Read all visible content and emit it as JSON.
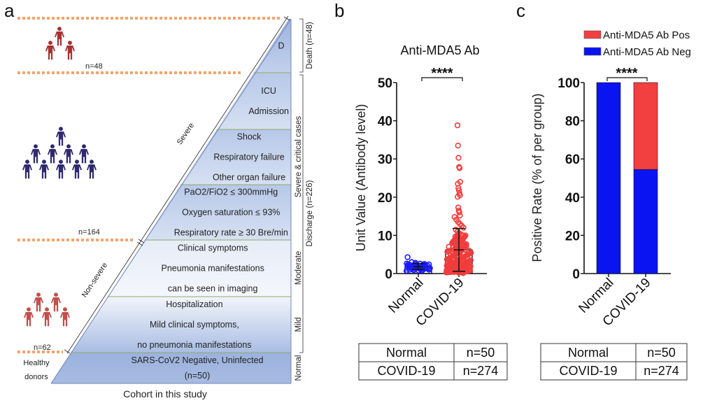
{
  "panel_a": {
    "letter": "a",
    "caption": "Cohort in this study",
    "cohort_counts": {
      "death": "n=48",
      "severe": "n=164",
      "non_severe": "n=62"
    },
    "healthy_label_1": "Healthy",
    "healthy_label_2": "donors",
    "slope_labels": {
      "severe": "Severe",
      "non_severe": "Non-severe"
    },
    "tiers": [
      {
        "id": "death",
        "lines": [
          "D"
        ]
      },
      {
        "id": "icu",
        "lines": [
          "ICU",
          "Admission"
        ]
      },
      {
        "id": "critical",
        "lines": [
          "Shock",
          "Respiratory failure",
          "Other organ  failure"
        ]
      },
      {
        "id": "severe",
        "lines": [
          "PaO2/FiO2 ≤ 300mmHg",
          "Oxygen saturation ≤ 93%",
          "Respiratory rate ≥ 30 Bre/min"
        ]
      },
      {
        "id": "moderate",
        "lines": [
          "Clinical symptoms",
          "Pneumonia manifestations",
          "can be seen in imaging"
        ]
      },
      {
        "id": "mild",
        "lines": [
          "Hospitalization",
          "Mild clinical symptoms,",
          "no pneumonia manifestations"
        ]
      },
      {
        "id": "normal",
        "lines": [
          "SARS-CoV2 Negative, Uninfected",
          "(n=50)"
        ]
      }
    ],
    "side_labels": {
      "death": "Death (n=48)",
      "severe_critical": "Severe & critical cases",
      "discharge": "Discharge (n=226)",
      "moderate": "Moderate",
      "mild": "Mild",
      "normal": "Normal"
    },
    "icon_groups": [
      {
        "name": "death-group",
        "count": 3,
        "color": "#a83232"
      },
      {
        "name": "severe-group",
        "count": 10,
        "color": "#2e2a6e"
      },
      {
        "name": "non-severe-group",
        "count": 5,
        "color": "#c0504d"
      }
    ],
    "colors": {
      "tier_fill_dark": "#9fb4dc",
      "tier_fill_light": "#edf1f9",
      "dots": "#f4a46b",
      "divider": "#8fa86a"
    }
  },
  "chart_data": [
    {
      "type": "scatter",
      "panel": "b",
      "title": "Anti-MDA5 Ab",
      "xlabel": "",
      "ylabel": "Unit Value (Antibody level)",
      "ylim": [
        0,
        50
      ],
      "yticks": [
        0,
        10,
        20,
        30,
        40,
        50
      ],
      "categories": [
        "Normal",
        "COVID-19"
      ],
      "significance": "****",
      "series": [
        {
          "name": "Normal",
          "color": "#1a1aff",
          "mean": 1.8,
          "sd_low": 1.1,
          "sd_high": 2.6,
          "values": [
            4.3,
            3.0,
            2.8,
            2.6,
            2.5,
            2.4,
            2.3,
            2.2,
            2.1,
            2.0,
            2.0,
            1.9,
            1.9,
            1.8,
            1.8,
            1.7,
            1.7,
            1.6,
            1.6,
            1.5,
            1.5,
            1.4,
            1.4,
            1.3,
            1.2,
            1.2,
            1.1,
            1.0,
            0.9,
            0.8
          ]
        },
        {
          "name": "COVID-19",
          "color": "#f03c3c",
          "mean": 6.2,
          "sd_low": 0.6,
          "sd_high": 11.8,
          "values": [
            38.8,
            33.5,
            30.3,
            27.9,
            27.6,
            24.0,
            23.5,
            22.4,
            21.8,
            21.0,
            20.5,
            20.1,
            17.3,
            16.5,
            16.0,
            15.2,
            14.8,
            14.1,
            13.5,
            13.0,
            12.5,
            12.0,
            11.5,
            11.0,
            10.5,
            10.2,
            10.0,
            9.7,
            9.4,
            9.1,
            8.8,
            8.5,
            8.2,
            8.0,
            7.8,
            7.5,
            7.2,
            7.0,
            6.8,
            6.6,
            6.4,
            6.2,
            6.0,
            5.8,
            5.6,
            5.4,
            5.2,
            5.0,
            4.8,
            4.6,
            4.4,
            4.2,
            4.0,
            3.8,
            3.6,
            3.4,
            3.2,
            3.0,
            2.8,
            2.6,
            2.4,
            2.2,
            2.0,
            1.8,
            1.6,
            1.4,
            1.2,
            1.0,
            0.8,
            0.6,
            0.4,
            0.2,
            0.1
          ]
        }
      ],
      "table": [
        [
          "Normal",
          "n=50"
        ],
        [
          "COVID-19",
          "n=274"
        ]
      ]
    },
    {
      "type": "bar",
      "stacked": true,
      "panel": "c",
      "title": "",
      "xlabel": "",
      "ylabel": "Positive Rate (% of per group)",
      "ylim": [
        0,
        100
      ],
      "yticks": [
        0,
        20,
        40,
        60,
        80,
        100
      ],
      "categories": [
        "Normal",
        "COVID-19"
      ],
      "significance": "****",
      "legend_position": "top-right",
      "series": [
        {
          "name": "Anti-MDA5 Ab Neg",
          "color": "#0a14f0",
          "values": [
            100,
            54.5
          ]
        },
        {
          "name": "Anti-MDA5 Ab Pos",
          "color": "#f23f3f",
          "values": [
            0,
            45.5
          ]
        }
      ],
      "table": [
        [
          "Normal",
          "n=50"
        ],
        [
          "COVID-19",
          "n=274"
        ]
      ]
    }
  ],
  "labels": {
    "panel_b_letter": "b",
    "panel_c_letter": "c"
  }
}
